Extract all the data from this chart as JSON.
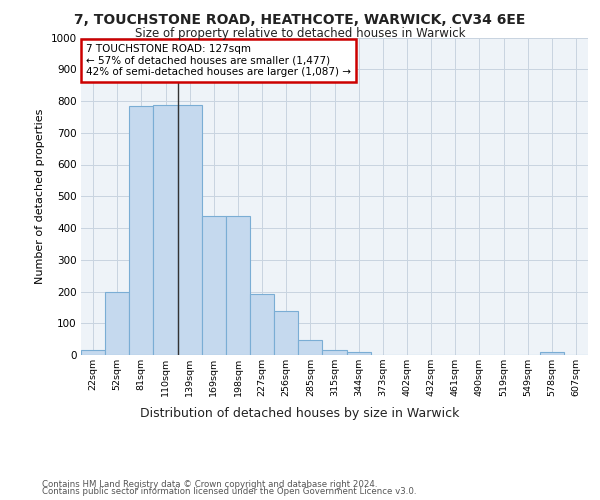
{
  "title1": "7, TOUCHSTONE ROAD, HEATHCOTE, WARWICK, CV34 6EE",
  "title2": "Size of property relative to detached houses in Warwick",
  "xlabel": "Distribution of detached houses by size in Warwick",
  "ylabel": "Number of detached properties",
  "footer1": "Contains HM Land Registry data © Crown copyright and database right 2024.",
  "footer2": "Contains public sector information licensed under the Open Government Licence v3.0.",
  "annotation_line1": "7 TOUCHSTONE ROAD: 127sqm",
  "annotation_line2": "← 57% of detached houses are smaller (1,477)",
  "annotation_line3": "42% of semi-detached houses are larger (1,087) →",
  "bar_labels": [
    "22sqm",
    "52sqm",
    "81sqm",
    "110sqm",
    "139sqm",
    "169sqm",
    "198sqm",
    "227sqm",
    "256sqm",
    "285sqm",
    "315sqm",
    "344sqm",
    "373sqm",
    "402sqm",
    "432sqm",
    "461sqm",
    "490sqm",
    "519sqm",
    "549sqm",
    "578sqm",
    "607sqm"
  ],
  "bar_values": [
    17,
    197,
    783,
    788,
    788,
    437,
    437,
    192,
    140,
    48,
    15,
    10,
    0,
    0,
    0,
    0,
    0,
    0,
    0,
    9,
    0
  ],
  "bar_color": "#c5d9ee",
  "bar_edge_color": "#7aadd4",
  "vline_color": "#333333",
  "annotation_box_color": "#cc0000",
  "background_color": "#eef3f8",
  "grid_color": "#c8d4e0",
  "ylim": [
    0,
    1000
  ],
  "yticks": [
    0,
    100,
    200,
    300,
    400,
    500,
    600,
    700,
    800,
    900,
    1000
  ],
  "vline_x": 3.5,
  "fig_width": 6.0,
  "fig_height": 5.0,
  "dpi": 100
}
